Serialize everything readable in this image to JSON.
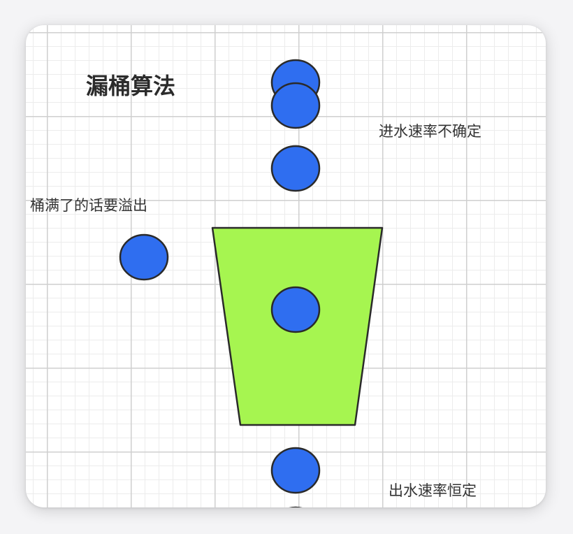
{
  "title": "漏桶算法",
  "notes": {
    "inflow": "进水速率不确定",
    "overflow": "桶满了的话要溢出",
    "outflow": "出水速率恒定"
  },
  "colors": {
    "bucket_fill": "#a6f550",
    "drop_fill": "#2f6ef0",
    "stroke": "#2a2a2a",
    "grid": "#cfcfcf"
  }
}
